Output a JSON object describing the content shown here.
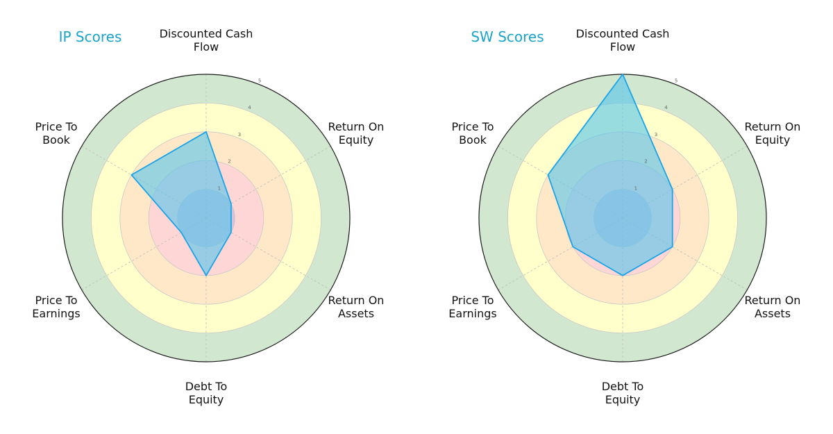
{
  "chart_data": [
    {
      "type": "radar",
      "title": "IP Scores",
      "axes": [
        [
          "Discounted Cash",
          "Flow"
        ],
        [
          "Return On",
          "Equity"
        ],
        [
          "Return On",
          "Assets"
        ],
        [
          "Debt To",
          "Equity"
        ],
        [
          "Price To",
          "Earnings"
        ],
        [
          "Price To",
          "Book"
        ]
      ],
      "values": [
        3,
        1,
        1,
        2,
        1,
        3
      ],
      "rlim": [
        0,
        5
      ],
      "ticks": [
        1,
        2,
        3,
        4,
        5
      ]
    },
    {
      "type": "radar",
      "title": "SW Scores",
      "axes": [
        [
          "Discounted Cash",
          "Flow"
        ],
        [
          "Return On",
          "Equity"
        ],
        [
          "Return On",
          "Assets"
        ],
        [
          "Debt To",
          "Equity"
        ],
        [
          "Price To",
          "Earnings"
        ],
        [
          "Price To",
          "Book"
        ]
      ],
      "values": [
        5,
        2,
        2,
        2,
        2,
        3
      ],
      "rlim": [
        0,
        5
      ],
      "ticks": [
        1,
        2,
        3,
        4,
        5
      ]
    }
  ],
  "colors": {
    "series_fill": "#53c4ec",
    "series_stroke": "#1aa3e6",
    "title": "#1aa3c9",
    "band_1": "#b3b3dc",
    "band_2": "#ffd6d6",
    "band_3": "#ffe8c8",
    "band_4": "#ffffcc",
    "band_5": "#d2e7cf"
  }
}
